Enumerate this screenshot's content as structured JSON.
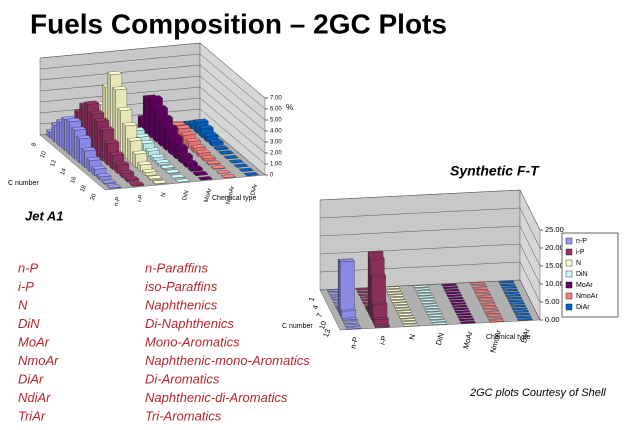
{
  "title": "Fuels Composition – 2GC Plots",
  "chart_data": [
    {
      "type": "bar3d",
      "title": "Jet A1",
      "x_label": "C number",
      "series_label": "Chemical type",
      "z_label": "%",
      "categories": [
        "8",
        null,
        "10",
        null,
        "12",
        null,
        "14",
        null,
        "16",
        null,
        "18",
        null,
        "20"
      ],
      "series": [
        {
          "name": "n-P",
          "color": "#9999ff",
          "values": [
            0.5,
            1.5,
            2.2,
            2.8,
            3.0,
            2.6,
            2.2,
            1.5,
            1.0,
            0.6,
            0.3,
            0.1,
            0.05
          ]
        },
        {
          "name": "i-P",
          "color": "#993366",
          "values": [
            0.8,
            2.5,
            3.5,
            4.0,
            3.5,
            3.2,
            2.8,
            2.0,
            1.3,
            0.8,
            0.4,
            0.2,
            0.1
          ]
        },
        {
          "name": "N",
          "color": "#ffffcc",
          "values": [
            1.5,
            3.0,
            5.0,
            6.5,
            5.5,
            4.0,
            3.0,
            2.0,
            1.2,
            0.6,
            0.3,
            0.1,
            0.05
          ]
        },
        {
          "name": "DiN",
          "color": "#ccffff",
          "values": [
            0.2,
            0.5,
            0.8,
            1.2,
            1.0,
            0.8,
            0.5,
            0.3,
            0.2,
            0.1,
            0.05,
            0,
            0
          ]
        },
        {
          "name": "MoAr",
          "color": "#660066",
          "values": [
            1.0,
            3.2,
            3.5,
            3.0,
            2.5,
            2.0,
            1.5,
            1.0,
            0.6,
            0.3,
            0.2,
            0.1,
            0
          ]
        },
        {
          "name": "NmoAr",
          "color": "#ff8080",
          "values": [
            0.2,
            0.6,
            0.9,
            1.0,
            0.8,
            0.6,
            0.4,
            0.3,
            0.2,
            0.1,
            0.05,
            0,
            0
          ]
        },
        {
          "name": "DiAr",
          "color": "#0066cc",
          "values": [
            0.1,
            0.5,
            1.0,
            0.8,
            0.5,
            0.3,
            0.1,
            0.05,
            0,
            0,
            0,
            0,
            0
          ]
        }
      ],
      "ylim": [
        0,
        7
      ],
      "yticks": [
        0,
        {
          "value": 1,
          "label": "1.00"
        },
        {
          "value": 2,
          "label": "2.00"
        },
        {
          "value": 3,
          "label": "3.00"
        },
        {
          "value": 4,
          "label": "4.00"
        },
        {
          "value": 5,
          "label": "5.00"
        },
        {
          "value": 6,
          "label": "6.00"
        },
        {
          "value": 7,
          "label": "7.00"
        }
      ],
      "legend": false
    },
    {
      "type": "bar3d",
      "title": "Synthetic F-T",
      "x_label": "C number",
      "series_label": "Chemical type",
      "categories": [
        "1",
        null,
        null,
        "4",
        null,
        null,
        "7",
        null,
        null,
        "10",
        null,
        null,
        "13",
        null,
        null
      ],
      "series": [
        {
          "name": "n-P",
          "color": "#9999ff",
          "values": [
            0,
            0,
            0,
            0,
            0,
            0,
            0,
            0.5,
            14.5,
            15,
            2,
            0.3,
            0,
            0,
            0
          ]
        },
        {
          "name": "i-P",
          "color": "#993366",
          "values": [
            0,
            0,
            0,
            0,
            0,
            0,
            0,
            0,
            1,
            17,
            16,
            12,
            5,
            1.5,
            0.3
          ]
        },
        {
          "name": "N",
          "color": "#ffffcc",
          "values": [
            0,
            0,
            0,
            0,
            0,
            0,
            0,
            0,
            0,
            0,
            0,
            0,
            0,
            0,
            0
          ]
        },
        {
          "name": "DiN",
          "color": "#ccffff",
          "values": [
            0,
            0,
            0,
            0,
            0,
            0,
            0,
            0,
            0,
            0,
            0,
            0,
            0,
            0,
            0
          ]
        },
        {
          "name": "MoAr",
          "color": "#660066",
          "values": [
            0,
            0,
            0,
            0,
            0,
            0,
            0,
            0,
            0,
            0,
            0,
            0,
            0,
            0,
            0
          ]
        },
        {
          "name": "NmoAr",
          "color": "#ff8080",
          "values": [
            0,
            0,
            0,
            0,
            0,
            0,
            0,
            0,
            0,
            0,
            0,
            0,
            0,
            0,
            0
          ]
        },
        {
          "name": "DiAr",
          "color": "#0066cc",
          "values": [
            0,
            0,
            0,
            0,
            0,
            0,
            0,
            0,
            0,
            0,
            0,
            0,
            0,
            0,
            0
          ]
        }
      ],
      "ylim": [
        0,
        25
      ],
      "yticks": [
        {
          "value": 0,
          "label": "0.00"
        },
        {
          "value": 5,
          "label": "5.00"
        },
        {
          "value": 10,
          "label": "10.00"
        },
        {
          "value": 15,
          "label": "15.00"
        },
        {
          "value": 20,
          "label": "20.00"
        },
        {
          "value": 25,
          "label": "25.00"
        }
      ],
      "legend": true
    }
  ],
  "abbreviations": {
    "rows": [
      [
        "n-P",
        "n-Paraffins"
      ],
      [
        "i-P",
        "iso-Paraffins"
      ],
      [
        "N",
        "Naphthenics"
      ],
      [
        "DiN",
        "Di-Naphthenics"
      ],
      [
        "MoAr",
        "Mono-Aromatics"
      ],
      [
        "NmoAr",
        "Naphthenic-mono-Aromatics"
      ],
      [
        "DiAr",
        "Di-Aromatics"
      ],
      [
        "NdiAr",
        "Naphthenic-di-Aromatics"
      ],
      [
        "TriAr",
        "Tri-Aromatics"
      ]
    ]
  },
  "credit": "2GC plots Courtesy of Shell"
}
